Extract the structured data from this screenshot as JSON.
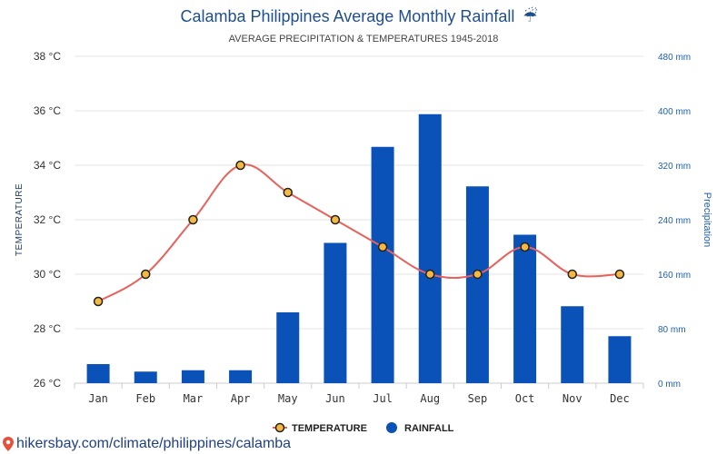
{
  "chart_data": {
    "type": "bar-line",
    "title": "Calamba Philippines Average Monthly Rainfall",
    "subtitle": "AVERAGE PRECIPITATION & TEMPERATURES 1945-2018",
    "categories": [
      "Jan",
      "Feb",
      "Mar",
      "Apr",
      "May",
      "Jun",
      "Jul",
      "Aug",
      "Sep",
      "Oct",
      "Nov",
      "Dec"
    ],
    "series": [
      {
        "name": "TEMPERATURE",
        "type": "line",
        "axis": "left",
        "color": "#e8615a",
        "values": [
          29,
          30,
          32,
          34,
          33,
          32,
          31,
          30,
          30,
          31,
          30,
          30
        ]
      },
      {
        "name": "RAINFALL",
        "type": "bar",
        "axis": "right",
        "color": "#0a52b8",
        "values": [
          28,
          17,
          19,
          19,
          104,
          206,
          347,
          395,
          289,
          218,
          113,
          69
        ]
      }
    ],
    "y_left": {
      "label": "TEMPERATURE",
      "min": 26,
      "max": 38,
      "step": 2,
      "unit": "°C"
    },
    "y_right": {
      "label": "Precipitation",
      "min": 0,
      "max": 480,
      "step": 80,
      "unit": "mm"
    },
    "legend_position": "bottom-center",
    "grid": true
  },
  "title_icon": "umbrella-icon",
  "source": "hikersbay.com/climate/philippines/calamba",
  "source_icon": "map-pin-icon"
}
